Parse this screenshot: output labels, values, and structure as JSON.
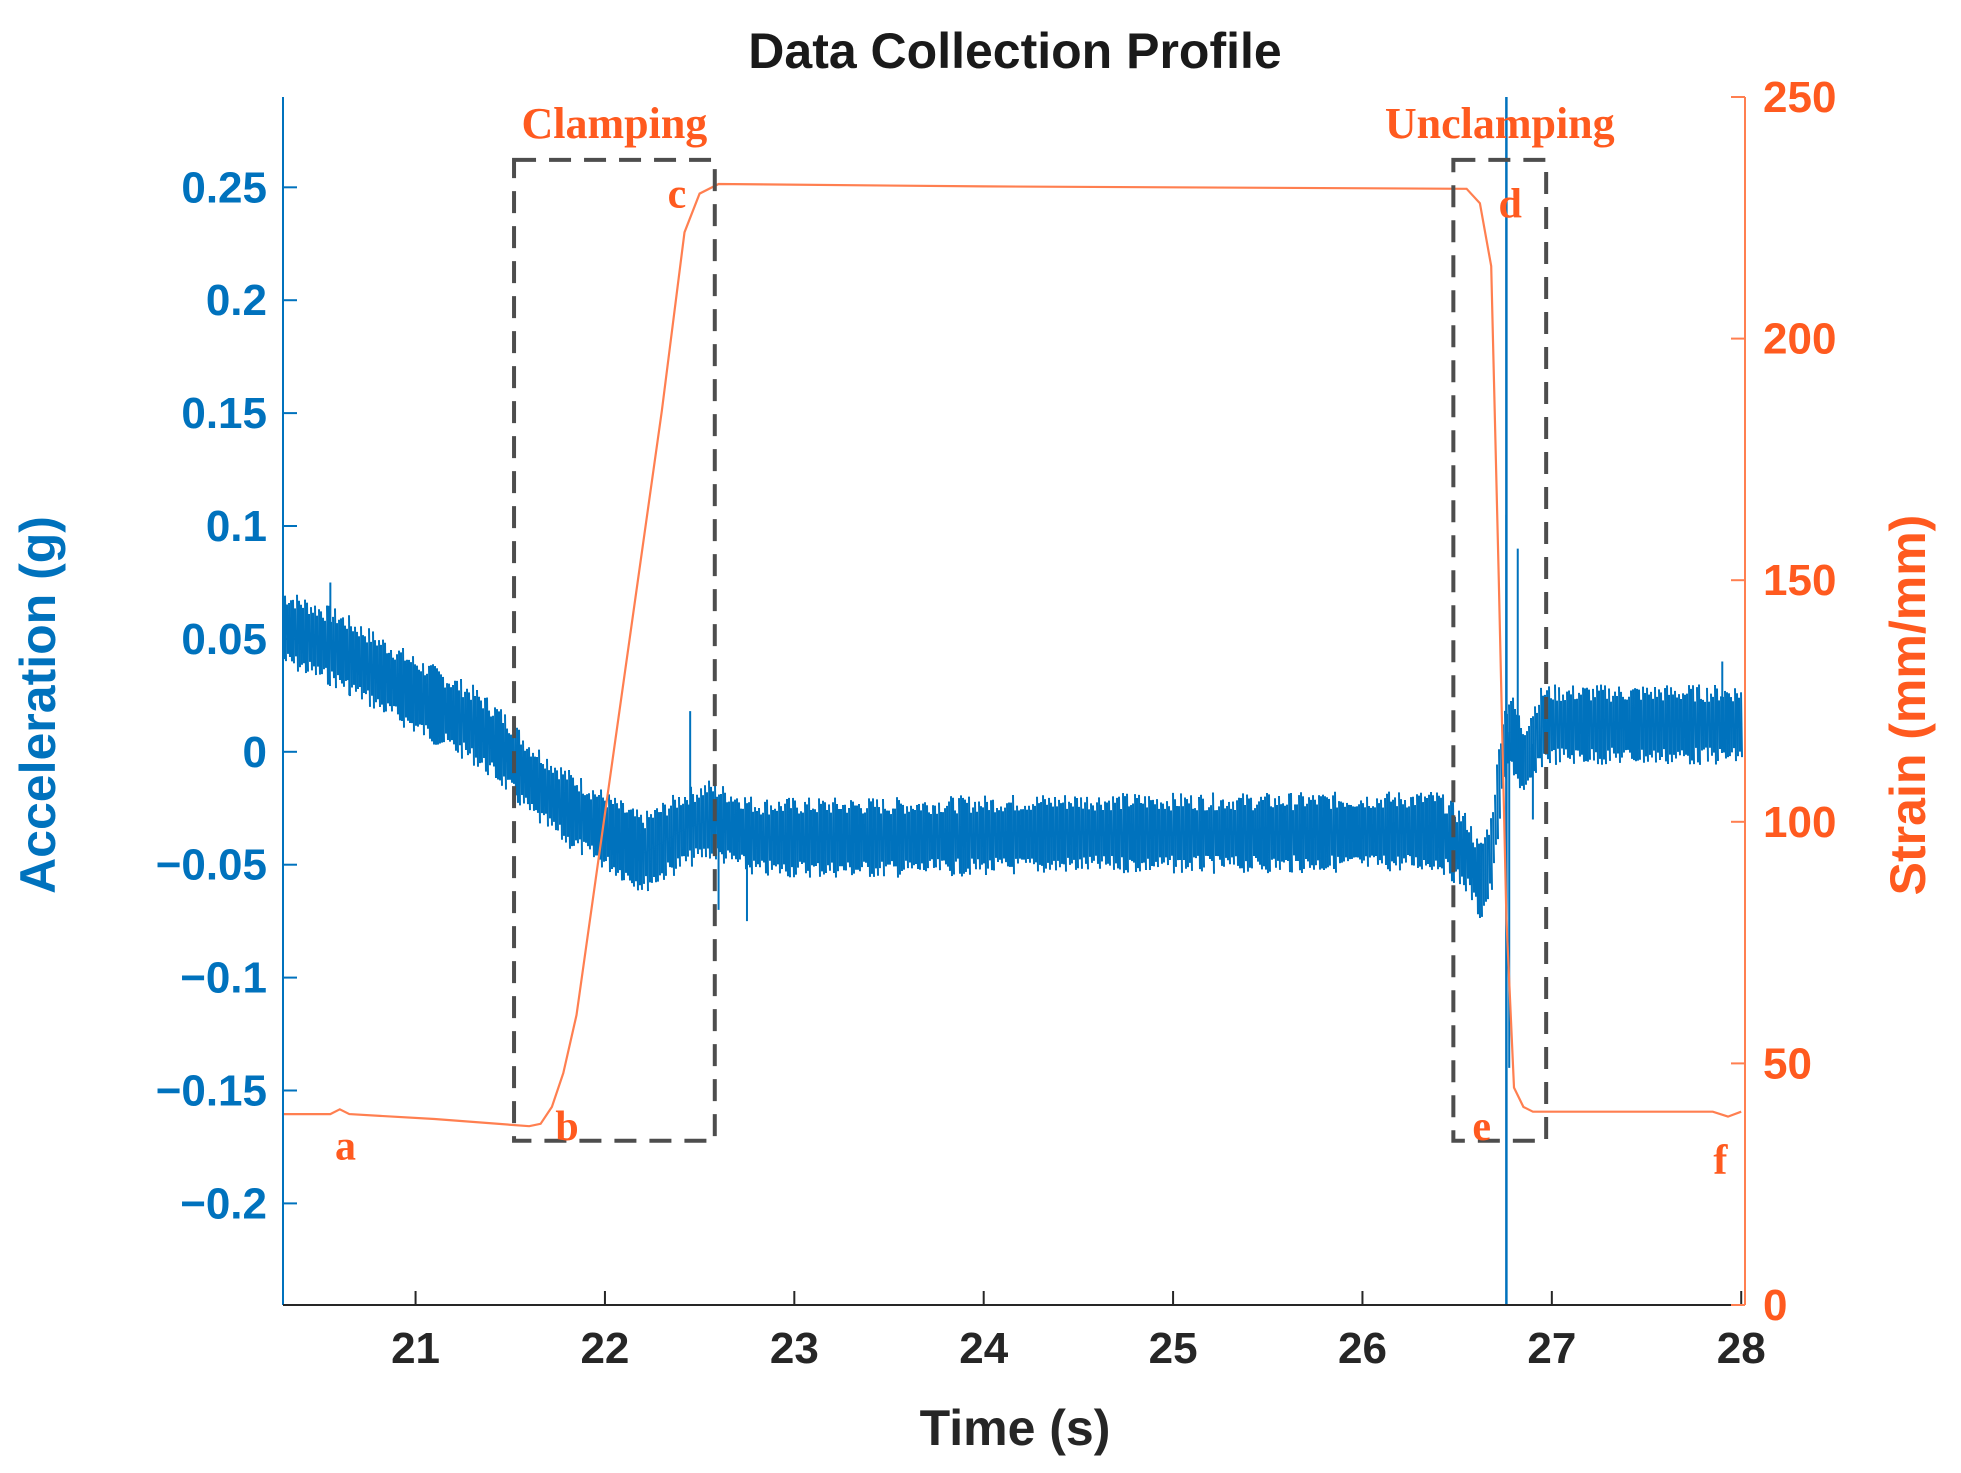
{
  "chart_data": {
    "type": "line",
    "title": "Data Collection Profile",
    "xlabel": "Time (s)",
    "ylabel_left": "Acceleration (g)",
    "ylabel_right": "Strain (mm/mm)",
    "xlim": [
      20.3,
      28.02
    ],
    "ylim_left": [
      -0.245,
      0.29
    ],
    "ylim_right": [
      0,
      250
    ],
    "x_ticks": [
      21,
      22,
      23,
      24,
      25,
      26,
      27,
      28
    ],
    "x_tick_labels": [
      "21",
      "22",
      "23",
      "24",
      "25",
      "26",
      "27",
      "28"
    ],
    "y_left_ticks": [
      0.25,
      0.2,
      0.15,
      0.1,
      0.05,
      0,
      -0.05,
      -0.1,
      -0.15,
      -0.2
    ],
    "y_left_tick_labels": [
      "0.25",
      "0.2",
      "0.15",
      "0.1",
      "0.05",
      "0",
      "−0.05",
      "−0.1",
      "−0.15",
      "−0.2"
    ],
    "y_right_ticks": [
      0,
      50,
      100,
      150,
      200,
      250
    ],
    "y_right_tick_labels": [
      "0",
      "50",
      "100",
      "150",
      "200",
      "250"
    ],
    "grid": false,
    "series": [
      {
        "name": "Acceleration",
        "axis": "left",
        "color": "#0072bd",
        "style": "noisy",
        "points": [
          [
            20.3,
            0.055
          ],
          [
            20.6,
            0.045
          ],
          [
            21.0,
            0.025
          ],
          [
            21.3,
            0.012
          ],
          [
            21.45,
            0.002
          ],
          [
            21.6,
            -0.012
          ],
          [
            21.8,
            -0.025
          ],
          [
            22.0,
            -0.035
          ],
          [
            22.2,
            -0.045
          ],
          [
            22.4,
            -0.035
          ],
          [
            22.55,
            -0.03
          ],
          [
            22.8,
            -0.038
          ],
          [
            23.5,
            -0.038
          ],
          [
            24.5,
            -0.036
          ],
          [
            25.5,
            -0.036
          ],
          [
            26.4,
            -0.035
          ],
          [
            26.55,
            -0.045
          ],
          [
            26.62,
            -0.058
          ],
          [
            26.68,
            -0.045
          ],
          [
            26.74,
            0.0
          ],
          [
            26.78,
            0.01
          ],
          [
            26.85,
            -0.005
          ],
          [
            26.95,
            0.012
          ],
          [
            27.5,
            0.012
          ],
          [
            28.0,
            0.012
          ]
        ],
        "spikes": [
          [
            20.55,
            0.075
          ],
          [
            20.65,
            0.025
          ],
          [
            22.45,
            0.018
          ],
          [
            22.6,
            -0.07
          ],
          [
            22.75,
            -0.075
          ],
          [
            26.76,
            0.105
          ],
          [
            26.775,
            -0.14
          ],
          [
            26.82,
            0.09
          ],
          [
            26.9,
            -0.03
          ],
          [
            27.9,
            0.04
          ]
        ]
      },
      {
        "name": "Strain",
        "axis": "right",
        "color": "#ff7f50",
        "points": [
          [
            20.3,
            39.5
          ],
          [
            20.55,
            39.5
          ],
          [
            20.6,
            40.5
          ],
          [
            20.65,
            39.5
          ],
          [
            21.1,
            38.5
          ],
          [
            21.6,
            37.0
          ],
          [
            21.66,
            37.5
          ],
          [
            21.72,
            41
          ],
          [
            21.78,
            48
          ],
          [
            21.85,
            60
          ],
          [
            22.3,
            185
          ],
          [
            22.42,
            222
          ],
          [
            22.5,
            230
          ],
          [
            22.6,
            232
          ],
          [
            24.0,
            231.5
          ],
          [
            26.55,
            231
          ],
          [
            26.62,
            228
          ],
          [
            26.68,
            215
          ],
          [
            26.72,
            150
          ],
          [
            26.76,
            80
          ],
          [
            26.8,
            45
          ],
          [
            26.85,
            41
          ],
          [
            26.9,
            40
          ],
          [
            27.85,
            40
          ],
          [
            27.93,
            39
          ],
          [
            28.0,
            40
          ]
        ]
      }
    ],
    "vline": {
      "x": 26.76,
      "color": "#0072bd"
    },
    "regions": [
      {
        "label": "Clamping",
        "x": [
          21.52,
          22.58
        ],
        "y_right": [
          34,
          237
        ]
      },
      {
        "label": "Unclamping",
        "x": [
          26.48,
          26.97
        ],
        "y_right": [
          34,
          237
        ]
      }
    ],
    "annotations": [
      {
        "text": "a",
        "x": 20.63,
        "y_right": 33
      },
      {
        "text": "b",
        "x": 21.8,
        "y_right": 37
      },
      {
        "text": "c",
        "x": 22.38,
        "y_right": 230
      },
      {
        "text": "d",
        "x": 26.78,
        "y_right": 228
      },
      {
        "text": "e",
        "x": 26.63,
        "y_right": 37
      },
      {
        "text": "f",
        "x": 27.89,
        "y_right": 30
      }
    ]
  }
}
